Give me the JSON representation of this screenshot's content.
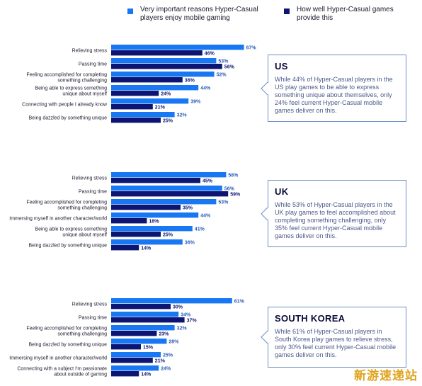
{
  "colors": {
    "important": "#1877f2",
    "deliver": "#0c1572",
    "label": "#1a1a2e",
    "value": "#2a5bb8"
  },
  "legend": {
    "important": "Very important reasons Hyper-Casual\nplayers enjoy mobile gaming",
    "deliver": "How well Hyper-Casual games\nprovide this"
  },
  "chart_data": [
    {
      "type": "bar",
      "orientation": "horizontal",
      "region": "US",
      "categories": [
        "Relieving stress",
        "Passing time",
        "Feeling accomplished for completing\nsomething challenging",
        "Being able to express something\nunique about myself",
        "Connecting with people I already know",
        "Being dazzled by something unique"
      ],
      "series": [
        {
          "name": "Very important reasons Hyper-Casual players enjoy mobile gaming",
          "values": [
            67,
            53,
            52,
            44,
            39,
            32
          ]
        },
        {
          "name": "How well Hyper-Casual games provide this",
          "values": [
            46,
            56,
            36,
            24,
            21,
            25
          ]
        }
      ]
    },
    {
      "type": "bar",
      "orientation": "horizontal",
      "region": "UK",
      "categories": [
        "Relieving stress",
        "Passing time",
        "Feeling accomplished for completing\nsomething challenging",
        "Immersing myself in another character/world",
        "Being able to express something\nunique about myself",
        "Being dazzled by something unique"
      ],
      "series": [
        {
          "name": "Very important reasons Hyper-Casual players enjoy mobile gaming",
          "values": [
            58,
            56,
            53,
            44,
            41,
            36
          ]
        },
        {
          "name": "How well Hyper-Casual games provide this",
          "values": [
            45,
            59,
            35,
            18,
            25,
            14
          ]
        }
      ]
    },
    {
      "type": "bar",
      "orientation": "horizontal",
      "region": "SOUTH KOREA",
      "categories": [
        "Relieving stress",
        "Passing time",
        "Feeling accomplished for completing\nsomething challenging",
        "Being dazzled by something unique",
        "Immersing myself in another character/world",
        "Connecting with a subject I'm passionate\nabout outside of gaming"
      ],
      "series": [
        {
          "name": "Very important reasons Hyper-Casual players enjoy mobile gaming",
          "values": [
            61,
            34,
            32,
            28,
            25,
            24
          ]
        },
        {
          "name": "How well Hyper-Casual games provide this",
          "values": [
            30,
            37,
            23,
            15,
            21,
            14
          ]
        }
      ]
    }
  ],
  "boxes": [
    {
      "title": "US",
      "body": "While 44% of Hyper-Casual players in the US play games to be able to express something unique about themselves, only 24% feel current Hyper-Casual mobile games deliver on this."
    },
    {
      "title": "UK",
      "body": "While 53% of Hyper-Casual players in the UK play games to feel accomplished about completing something challenging, only 35% feel current Hyper-Casual mobile games deliver on this."
    },
    {
      "title": "SOUTH KOREA",
      "body": "While 61% of Hyper-Casual players in South Korea play games to relieve stress, only 30% feel current Hyper-Casual mobile games deliver on this."
    }
  ],
  "watermark": "新游速递站"
}
